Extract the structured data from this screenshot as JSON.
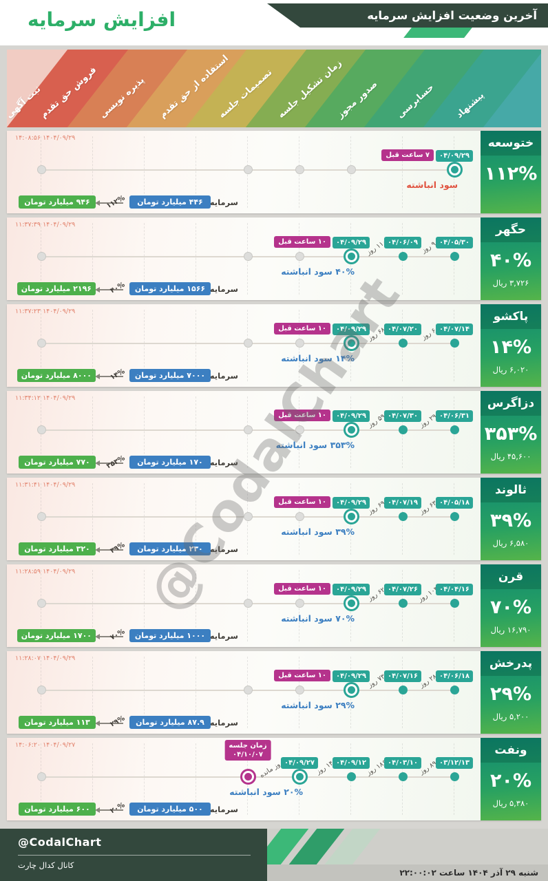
{
  "header": {
    "title": "افزایش سرمایه",
    "ribbon": "آخرین وضعیت افزایش سرمایه"
  },
  "stages": [
    {
      "label": "پیشنهاد",
      "color": "#46a9a7"
    },
    {
      "label": "حسابرسی",
      "color": "#3ba48f"
    },
    {
      "label": "صدور مجوز",
      "color": "#41a574"
    },
    {
      "label": "زمان تشکیل جلسه",
      "color": "#57aa5f"
    },
    {
      "label": "تصمیمات جلسه",
      "color": "#85ad52"
    },
    {
      "label": "استفاده از حق تقدم",
      "color": "#c4b254"
    },
    {
      "label": "پذیره نویسی",
      "color": "#d99f5b"
    },
    {
      "label": "فروش حق تقدم",
      "color": "#d88055"
    },
    {
      "label": "ثبت آگهی",
      "color": "#d8604f"
    }
  ],
  "band_corner_colors": {
    "top_left": "#f1ccc3",
    "bottom_right": "#bfe0d9"
  },
  "colors": {
    "teal": "#2aa596",
    "magenta": "#b5338c",
    "blue_box": "#3c7fc1",
    "green_box": "#4db04c",
    "dark_green": "#33483d",
    "accent_green": "#3cb878",
    "title_green": "#2daf68"
  },
  "watermark": "@CodalChart",
  "cards": [
    {
      "name": "ختوسعه",
      "percent": "۱۱۲%",
      "price": "",
      "timestamp": "۱۴۰۴/۰۹/۲۹ ۱۴:۰۸:۵۶",
      "badge": {
        "text": "۷ ساعت قبل",
        "col": 1,
        "pos": "side"
      },
      "note": {
        "text": "سود انباشته",
        "color": "#e0523f",
        "col": 1
      },
      "events": [
        {
          "col": 1,
          "date": "۰۴/۰۹/۲۹",
          "style": "current"
        }
      ],
      "durations": [],
      "gray_cols": [
        3,
        4,
        5,
        9
      ],
      "capital": {
        "label": "سرمایه:",
        "from": "۴۴۶ میلیارد تومان",
        "percent": "۱۱۲%",
        "to": "۹۴۶ میلیارد تومان"
      }
    },
    {
      "name": "حگهر",
      "percent": "۴۰%",
      "price": "۳,۷۲۶ ریال",
      "timestamp": "۱۴۰۴/۰۹/۲۹ ۱۱:۳۷:۳۹",
      "badge": {
        "text": "۱۰ ساعت قبل",
        "col": 3,
        "pos": "side"
      },
      "note": {
        "text": "۴۰% سود انباشته",
        "color": "#3c7fc1",
        "col": 3
      },
      "events": [
        {
          "col": 1,
          "date": "۰۴/۰۵/۳۰",
          "style": "done"
        },
        {
          "col": 2,
          "date": "۰۴/۰۶/۰۹",
          "style": "done"
        },
        {
          "col": 3,
          "date": "۰۴/۰۹/۲۹",
          "style": "current"
        }
      ],
      "durations": [
        {
          "after_col": 1,
          "label": "۹ روز"
        },
        {
          "after_col": 2,
          "label": "۱۱۰ روز"
        }
      ],
      "gray_cols": [
        4,
        5,
        9
      ],
      "capital": {
        "label": "سرمایه:",
        "from": "۱۵۶۶ میلیارد تومان",
        "percent": "۴۰%",
        "to": "۲۱۹۶ میلیارد تومان"
      }
    },
    {
      "name": "پاکشو",
      "percent": "۱۴%",
      "price": "۶,۰۲۰ ریال",
      "timestamp": "۱۴۰۴/۰۹/۲۹ ۱۱:۳۷:۲۳",
      "badge": {
        "text": "۱۰ ساعت قبل",
        "col": 3,
        "pos": "side"
      },
      "note": {
        "text": "۱۴% سود انباشته",
        "color": "#3c7fc1",
        "col": 3
      },
      "events": [
        {
          "col": 1,
          "date": "۰۴/۰۷/۱۴",
          "style": "done"
        },
        {
          "col": 2,
          "date": "۰۴/۰۷/۲۰",
          "style": "done"
        },
        {
          "col": 3,
          "date": "۰۴/۰۹/۲۹",
          "style": "current"
        }
      ],
      "durations": [
        {
          "after_col": 1,
          "label": "۶ روز"
        },
        {
          "after_col": 2,
          "label": "۶۸ روز"
        }
      ],
      "gray_cols": [
        4,
        5,
        9
      ],
      "capital": {
        "label": "سرمایه:",
        "from": "۷۰۰۰ میلیارد تومان",
        "percent": "۱۴%",
        "to": "۸۰۰۰ میلیارد تومان"
      }
    },
    {
      "name": "دزاگرس",
      "percent": "۳۵۳%",
      "price": "۴۵,۶۰۰ ریال",
      "timestamp": "۱۴۰۴/۰۹/۲۹ ۱۱:۳۴:۱۲",
      "badge": {
        "text": "۱۰ ساعت قبل",
        "col": 3,
        "pos": "side"
      },
      "note": {
        "text": "۳۵۳% سود انباشته",
        "color": "#3c7fc1",
        "col": 3
      },
      "events": [
        {
          "col": 1,
          "date": "۰۴/۰۶/۳۱",
          "style": "done"
        },
        {
          "col": 2,
          "date": "۰۴/۰۷/۳۰",
          "style": "done"
        },
        {
          "col": 3,
          "date": "۰۴/۰۹/۲۹",
          "style": "current"
        }
      ],
      "durations": [
        {
          "after_col": 1,
          "label": "۲۹ روز"
        },
        {
          "after_col": 2,
          "label": "۵۹ روز"
        }
      ],
      "gray_cols": [
        4,
        5,
        9
      ],
      "capital": {
        "label": "سرمایه:",
        "from": "۱۷۰ میلیارد تومان",
        "percent": "۳۵۳%",
        "to": "۷۷۰ میلیارد تومان"
      }
    },
    {
      "name": "ثالوند",
      "percent": "۳۹%",
      "price": "۶,۵۸۰ ریال",
      "timestamp": "۱۴۰۴/۰۹/۲۹ ۱۱:۳۱:۴۱",
      "badge": {
        "text": "۱۰ ساعت قبل",
        "col": 3,
        "pos": "side"
      },
      "note": {
        "text": "۳۹% سود انباشته",
        "color": "#3c7fc1",
        "col": 3
      },
      "events": [
        {
          "col": 1,
          "date": "۰۴/۰۵/۱۸",
          "style": "done"
        },
        {
          "col": 2,
          "date": "۰۴/۰۷/۱۹",
          "style": "done"
        },
        {
          "col": 3,
          "date": "۰۴/۰۹/۲۹",
          "style": "current"
        }
      ],
      "durations": [
        {
          "after_col": 1,
          "label": "۶۳ روز"
        },
        {
          "after_col": 2,
          "label": "۶۹ روز"
        }
      ],
      "gray_cols": [
        4,
        5,
        9
      ],
      "capital": {
        "label": "سرمایه:",
        "from": "۲۳۰ میلیارد تومان",
        "percent": "۳۹%",
        "to": "۳۲۰ میلیارد تومان"
      }
    },
    {
      "name": "قرن",
      "percent": "۷۰%",
      "price": "۱۶,۷۹۰ ریال",
      "timestamp": "۱۴۰۴/۰۹/۲۹ ۱۱:۲۸:۵۹",
      "badge": {
        "text": "۱۰ ساعت قبل",
        "col": 3,
        "pos": "side"
      },
      "note": {
        "text": "۷۰% سود انباشته",
        "color": "#3c7fc1",
        "col": 3
      },
      "events": [
        {
          "col": 1,
          "date": "۰۴/۰۴/۱۶",
          "style": "done"
        },
        {
          "col": 2,
          "date": "۰۴/۰۷/۲۶",
          "style": "done"
        },
        {
          "col": 3,
          "date": "۰۴/۰۹/۲۹",
          "style": "current"
        }
      ],
      "durations": [
        {
          "after_col": 1,
          "label": "۱۰۳ روز"
        },
        {
          "after_col": 2,
          "label": "۶۲ روز"
        }
      ],
      "gray_cols": [
        4,
        5,
        9
      ],
      "capital": {
        "label": "سرمایه:",
        "from": "۱۰۰۰ میلیارد تومان",
        "percent": "۷۰%",
        "to": "۱۷۰۰ میلیارد تومان"
      }
    },
    {
      "name": "پدرخش",
      "percent": "۲۹%",
      "price": "۵,۲۰۰ ریال",
      "timestamp": "۱۴۰۴/۰۹/۲۹ ۱۱:۲۸:۰۷",
      "badge": {
        "text": "۱۰ ساعت قبل",
        "col": 3,
        "pos": "side"
      },
      "note": {
        "text": "۲۹% سود انباشته",
        "color": "#3c7fc1",
        "col": 3
      },
      "events": [
        {
          "col": 1,
          "date": "۰۴/۰۶/۱۸",
          "style": "done"
        },
        {
          "col": 2,
          "date": "۰۴/۰۷/۱۶",
          "style": "done"
        },
        {
          "col": 3,
          "date": "۰۴/۰۹/۲۹",
          "style": "current"
        }
      ],
      "durations": [
        {
          "after_col": 1,
          "label": "۲۸ روز"
        },
        {
          "after_col": 2,
          "label": "۷۳ روز"
        }
      ],
      "gray_cols": [
        4,
        5,
        9
      ],
      "capital": {
        "label": "سرمایه:",
        "from": "۸۷.۹ میلیارد تومان",
        "percent": "۲۹%",
        "to": "۱۱۳ میلیارد تومان"
      }
    },
    {
      "name": "ونفت",
      "percent": "۲۰%",
      "price": "۵,۳۸۰ ریال",
      "timestamp": "۱۴۰۴/۰۹/۲۷ ۱۴:۰۶:۲۰",
      "badge": {
        "text": "زمان جلسه\n۰۴/۱۰/۰۷",
        "col": 5,
        "pos": "above"
      },
      "note": {
        "text": "۲۰% سود انباشته",
        "color": "#3c7fc1",
        "col": 4
      },
      "events": [
        {
          "col": 1,
          "date": "۰۳/۱۲/۱۳",
          "style": "done"
        },
        {
          "col": 2,
          "date": "۰۴/۰۳/۱۰",
          "style": "done"
        },
        {
          "col": 3,
          "date": "۰۴/۰۹/۱۲",
          "style": "done"
        },
        {
          "col": 4,
          "date": "۰۴/۰۹/۲۷",
          "style": "current"
        },
        {
          "col": 5,
          "date": "",
          "style": "meeting"
        }
      ],
      "durations": [
        {
          "after_col": 1,
          "label": "۸۹ روز"
        },
        {
          "after_col": 2,
          "label": "۱۸۶ روز"
        },
        {
          "after_col": 3,
          "label": "۱۴ روز"
        },
        {
          "after_col": 4,
          "label": "۷ روز مانده"
        }
      ],
      "gray_cols": [
        9
      ],
      "capital": {
        "label": "سرمایه:",
        "from": "۵۰۰ میلیارد تومان",
        "percent": "۲۰%",
        "to": "۶۰۰ میلیارد تومان"
      }
    }
  ],
  "footer": {
    "handle": "@CodalChart",
    "channel": "کانال کدال چارت",
    "datetime": "شنبه ۲۹ آذر ۱۴۰۴ ساعت ۲۲:۰۰:۰۲",
    "stripe_colors": [
      "#3cb878",
      "#2f9d69",
      "#c2d6c6"
    ]
  }
}
